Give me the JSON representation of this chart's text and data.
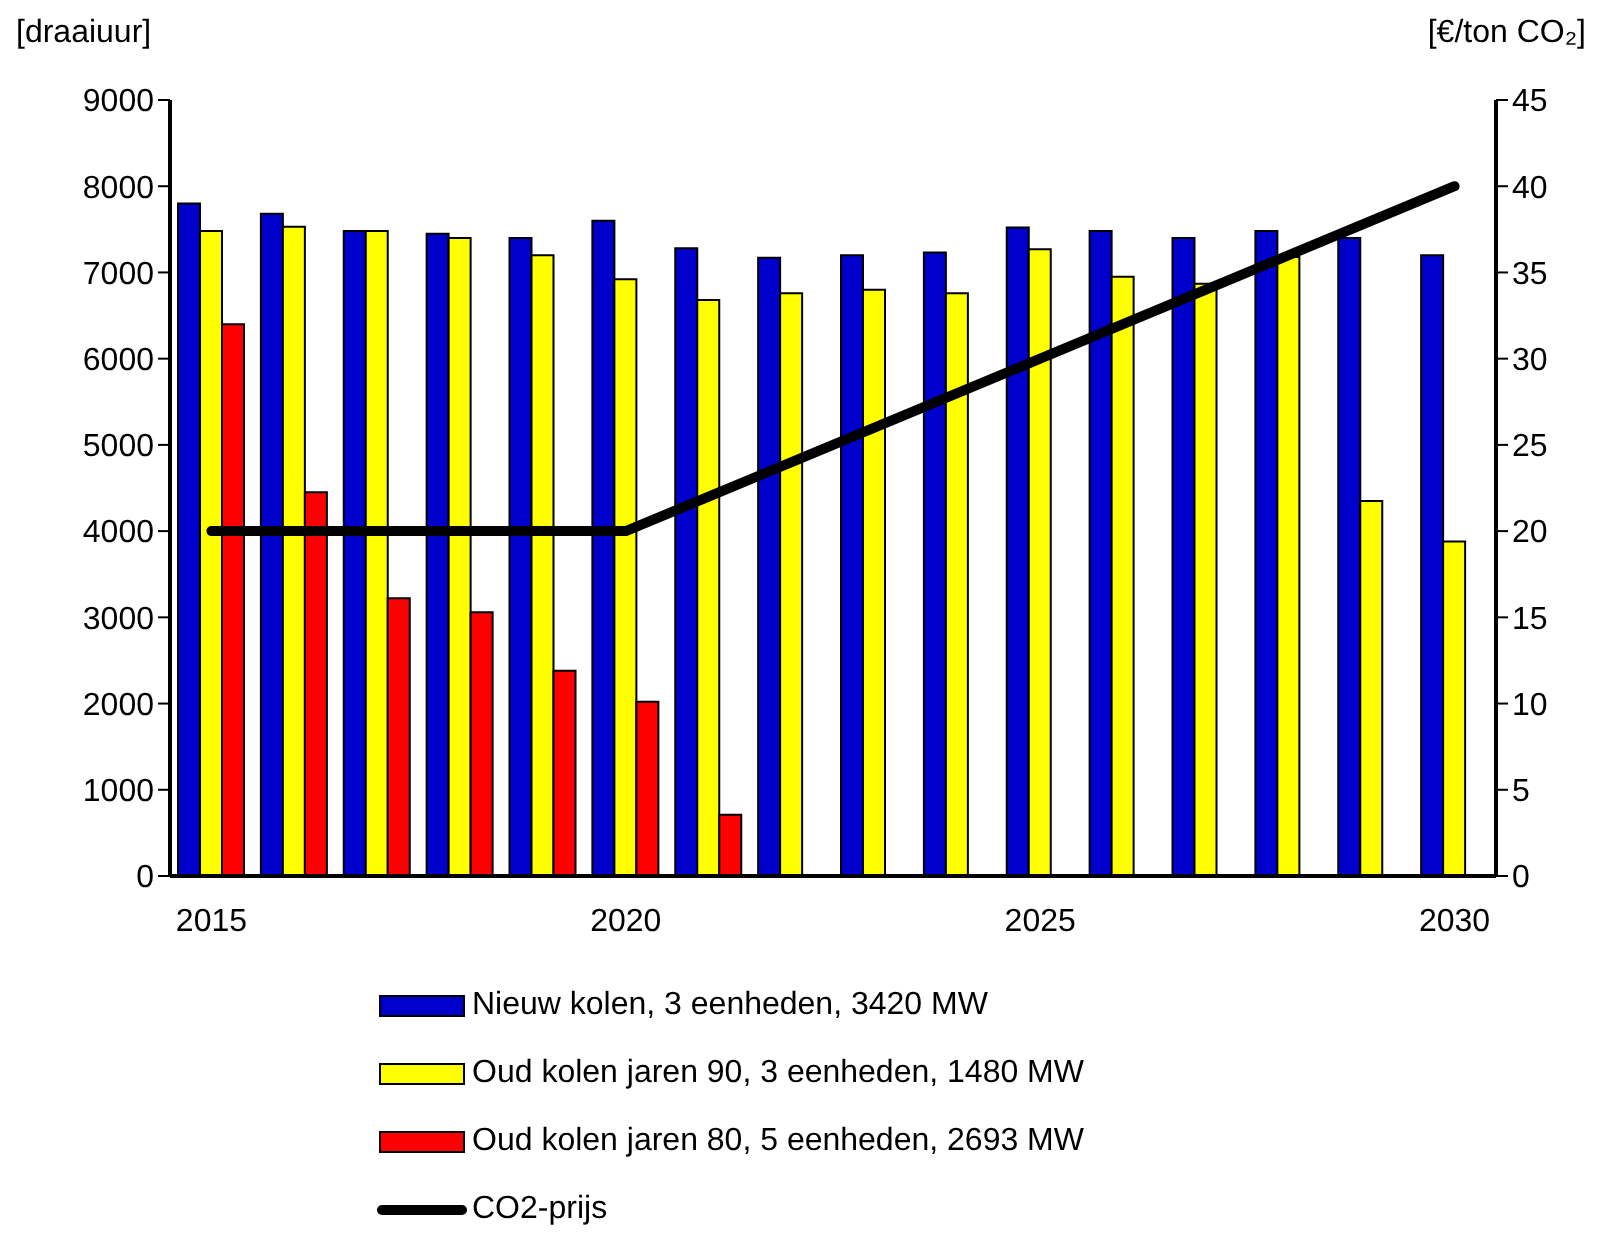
{
  "chart_data": {
    "type": "bar",
    "ylabel": "[draaiuur]",
    "y2label": "[€/ton CO₂]",
    "x": [
      2015,
      2016,
      2017,
      2018,
      2019,
      2020,
      2021,
      2022,
      2023,
      2024,
      2025,
      2026,
      2027,
      2028,
      2029,
      2030
    ],
    "xlim": [
      2014.5,
      2030.5
    ],
    "xticks": [
      2015,
      2020,
      2025,
      2030
    ],
    "ylim": [
      0,
      9000
    ],
    "yticks": [
      0,
      1000,
      2000,
      3000,
      4000,
      5000,
      6000,
      7000,
      8000,
      9000
    ],
    "y2lim": [
      0,
      45
    ],
    "y2ticks": [
      0,
      5,
      10,
      15,
      20,
      25,
      30,
      35,
      40,
      45
    ],
    "legend": "bottom",
    "series": [
      {
        "name": "Nieuw kolen, 3 eenheden, 3420 MW",
        "color": "#0000cc",
        "values": [
          7800,
          7680,
          7480,
          7450,
          7400,
          7600,
          7280,
          7170,
          7200,
          7230,
          7520,
          7480,
          7400,
          7480,
          7400,
          7200
        ]
      },
      {
        "name": "Oud kolen jaren 90, 3 eenheden, 1480 MW",
        "color": "#ffff00",
        "values": [
          7480,
          7530,
          7480,
          7400,
          7200,
          6920,
          6680,
          6760,
          6800,
          6760,
          7270,
          6950,
          6870,
          7180,
          4350,
          3880
        ]
      },
      {
        "name": "Oud kolen jaren 80, 5 eenheden, 2693 MW",
        "color": "#ff0000",
        "values": [
          6400,
          4450,
          3220,
          3060,
          2380,
          2020,
          710,
          null,
          null,
          null,
          null,
          null,
          null,
          null,
          null,
          null
        ]
      },
      {
        "name": "CO2-prijs",
        "type": "line",
        "axis": "y2",
        "color": "#000000",
        "values": [
          20,
          20,
          20,
          20,
          20,
          20,
          22,
          24,
          26,
          28,
          30,
          32,
          34,
          36,
          38,
          40
        ]
      }
    ]
  }
}
